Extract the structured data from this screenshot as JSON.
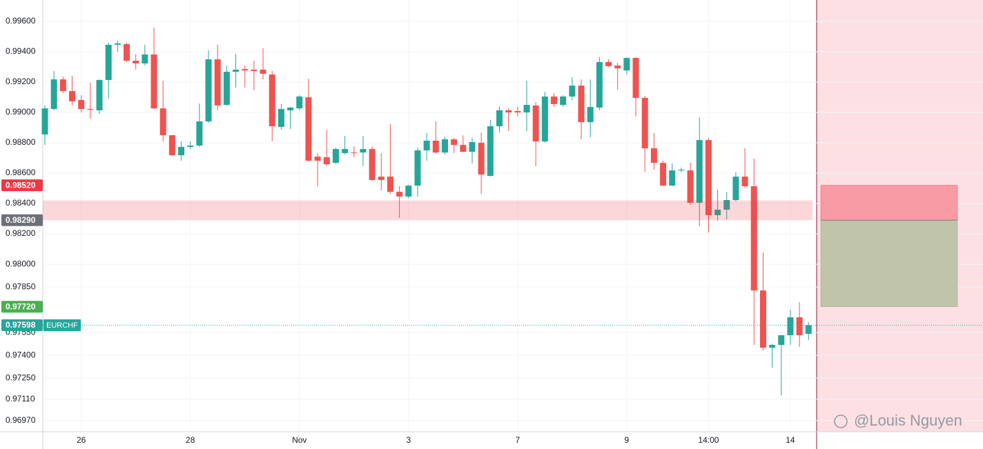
{
  "chart_data": {
    "type": "candlestick",
    "symbol": "EURCHF",
    "watermark": "@Louis Nguyen",
    "up_color": "#26a69a",
    "down_color": "#ef5350",
    "grid": true,
    "ylim": [
      0.96896,
      0.99741
    ],
    "yticks": [
      {
        "value": 0.996,
        "label": "0.99600"
      },
      {
        "value": 0.994,
        "label": "0.99400"
      },
      {
        "value": 0.992,
        "label": "0.99200"
      },
      {
        "value": 0.99,
        "label": "0.99000"
      },
      {
        "value": 0.988,
        "label": "0.98800"
      },
      {
        "value": 0.986,
        "label": "0.98600"
      },
      {
        "value": 0.984,
        "label": "0.98400"
      },
      {
        "value": 0.982,
        "label": "0.98200"
      },
      {
        "value": 0.98,
        "label": "0.98000"
      },
      {
        "value": 0.9785,
        "label": "0.97850"
      },
      {
        "value": 0.9755,
        "label": "0.97550"
      },
      {
        "value": 0.974,
        "label": "0.97400"
      },
      {
        "value": 0.9725,
        "label": "0.97250"
      },
      {
        "value": 0.9711,
        "label": "0.97110"
      },
      {
        "value": 0.9697,
        "label": "0.96970"
      }
    ],
    "categories": [
      null,
      null,
      null,
      null,
      "26",
      null,
      null,
      null,
      null,
      null,
      null,
      null,
      null,
      null,
      null,
      null,
      "28",
      null,
      null,
      null,
      null,
      null,
      null,
      null,
      null,
      null,
      null,
      null,
      "Nov",
      null,
      null,
      null,
      null,
      null,
      null,
      null,
      null,
      null,
      null,
      null,
      "3",
      null,
      null,
      null,
      null,
      null,
      null,
      null,
      null,
      null,
      null,
      null,
      "7",
      null,
      null,
      null,
      null,
      null,
      null,
      null,
      null,
      null,
      null,
      null,
      "9",
      null,
      null,
      null,
      null,
      null,
      null,
      null,
      null,
      "14:00",
      null,
      null,
      null,
      null,
      null,
      null,
      null,
      null,
      "14",
      null,
      null
    ],
    "ohlc": [
      [
        0.98855,
        0.99046,
        0.98786,
        0.99027
      ],
      [
        0.99023,
        0.99273,
        0.99014,
        0.99218
      ],
      [
        0.99218,
        0.99236,
        0.99127,
        0.99141
      ],
      [
        0.99141,
        0.99241,
        0.99046,
        0.99073
      ],
      [
        0.99082,
        0.99114,
        0.99,
        0.99023
      ],
      [
        0.99023,
        0.99196,
        0.98959,
        0.99018
      ],
      [
        0.99014,
        0.99218,
        0.98991,
        0.99214
      ],
      [
        0.99214,
        0.99459,
        0.99091,
        0.99446
      ],
      [
        0.99446,
        0.99473,
        0.994,
        0.99455
      ],
      [
        0.9945,
        0.99459,
        0.99332,
        0.99341
      ],
      [
        0.99341,
        0.99386,
        0.99282,
        0.99323
      ],
      [
        0.99323,
        0.99446,
        0.99309,
        0.99382
      ],
      [
        0.99382,
        0.99559,
        0.99023,
        0.99027
      ],
      [
        0.99027,
        0.99209,
        0.98809,
        0.9885
      ],
      [
        0.9885,
        0.9885,
        0.98714,
        0.98718
      ],
      [
        0.98718,
        0.98809,
        0.98682,
        0.98773
      ],
      [
        0.98773,
        0.98809,
        0.98759,
        0.98782
      ],
      [
        0.98782,
        0.99059,
        0.98773,
        0.98941
      ],
      [
        0.98941,
        0.99409,
        0.98932,
        0.9935
      ],
      [
        0.9935,
        0.99446,
        0.99014,
        0.99046
      ],
      [
        0.9905,
        0.99309,
        0.99046,
        0.99268
      ],
      [
        0.99268,
        0.99386,
        0.99164,
        0.99282
      ],
      [
        0.99286,
        0.99309,
        0.99164,
        0.99277
      ],
      [
        0.99282,
        0.99341,
        0.99146,
        0.99273
      ],
      [
        0.99282,
        0.99423,
        0.99218,
        0.99255
      ],
      [
        0.9925,
        0.99273,
        0.98809,
        0.98909
      ],
      [
        0.98905,
        0.99055,
        0.98886,
        0.99023
      ],
      [
        0.99014,
        0.99036,
        0.98891,
        0.99032
      ],
      [
        0.99027,
        0.99114,
        0.99014,
        0.99105
      ],
      [
        0.991,
        0.99223,
        0.98677,
        0.98682
      ],
      [
        0.98709,
        0.98732,
        0.98514,
        0.98682
      ],
      [
        0.98705,
        0.98886,
        0.9865,
        0.98659
      ],
      [
        0.98668,
        0.98768,
        0.98659,
        0.98759
      ],
      [
        0.98732,
        0.98846,
        0.98723,
        0.98759
      ],
      [
        0.98736,
        0.98777,
        0.98705,
        0.98732
      ],
      [
        0.98736,
        0.98846,
        0.98646,
        0.98759
      ],
      [
        0.98759,
        0.98777,
        0.9855,
        0.98555
      ],
      [
        0.98577,
        0.98732,
        0.98486,
        0.98555
      ],
      [
        0.98577,
        0.98923,
        0.98464,
        0.98477
      ],
      [
        0.98477,
        0.98514,
        0.98305,
        0.98446
      ],
      [
        0.98446,
        0.98523,
        0.98436,
        0.98518
      ],
      [
        0.98518,
        0.98768,
        0.98446,
        0.9875
      ],
      [
        0.9875,
        0.98864,
        0.98682,
        0.98814
      ],
      [
        0.98814,
        0.98941,
        0.98727,
        0.98736
      ],
      [
        0.98736,
        0.98841,
        0.98723,
        0.98823
      ],
      [
        0.98823,
        0.98832,
        0.98732,
        0.98786
      ],
      [
        0.98786,
        0.9885,
        0.98736,
        0.98741
      ],
      [
        0.98741,
        0.98832,
        0.98664,
        0.98805
      ],
      [
        0.988,
        0.98868,
        0.98464,
        0.98591
      ],
      [
        0.98582,
        0.9895,
        0.98577,
        0.98909
      ],
      [
        0.98909,
        0.99041,
        0.98868,
        0.99014
      ],
      [
        0.99014,
        0.99027,
        0.98877,
        0.99
      ],
      [
        0.99009,
        0.99036,
        0.98973,
        0.99
      ],
      [
        0.99,
        0.99209,
        0.98877,
        0.9905
      ],
      [
        0.99046,
        0.99068,
        0.98646,
        0.98809
      ],
      [
        0.98809,
        0.99136,
        0.988,
        0.99105
      ],
      [
        0.99105,
        0.99127,
        0.99036,
        0.99055
      ],
      [
        0.9905,
        0.99114,
        0.99036,
        0.99105
      ],
      [
        0.99105,
        0.99232,
        0.99082,
        0.99177
      ],
      [
        0.99177,
        0.99218,
        0.98823,
        0.98936
      ],
      [
        0.98936,
        0.99218,
        0.98836,
        0.99036
      ],
      [
        0.99032,
        0.99364,
        0.99014,
        0.99332
      ],
      [
        0.99332,
        0.9935,
        0.993,
        0.99305
      ],
      [
        0.99309,
        0.99327,
        0.9915,
        0.99291
      ],
      [
        0.99277,
        0.99364,
        0.9925,
        0.99359
      ],
      [
        0.99359,
        0.99364,
        0.98973,
        0.99096
      ],
      [
        0.99096,
        0.99109,
        0.98609,
        0.98764
      ],
      [
        0.98764,
        0.98864,
        0.98623,
        0.98668
      ],
      [
        0.98668,
        0.98682,
        0.98514,
        0.98518
      ],
      [
        0.98518,
        0.98664,
        0.98514,
        0.98618
      ],
      [
        0.98618,
        0.98636,
        0.98605,
        0.98623
      ],
      [
        0.98618,
        0.98668,
        0.98391,
        0.98405
      ],
      [
        0.98405,
        0.98968,
        0.9825,
        0.98818
      ],
      [
        0.98818,
        0.98832,
        0.98209,
        0.98323
      ],
      [
        0.98323,
        0.98491,
        0.98286,
        0.98359
      ],
      [
        0.98359,
        0.98477,
        0.98295,
        0.98423
      ],
      [
        0.98423,
        0.98605,
        0.98414,
        0.98577
      ],
      [
        0.98577,
        0.98764,
        0.98505,
        0.98514
      ],
      [
        0.98514,
        0.98696,
        0.97468,
        0.97827
      ],
      [
        0.97827,
        0.98077,
        0.97432,
        0.9745
      ],
      [
        0.9745,
        0.97477,
        0.97318,
        0.97468
      ],
      [
        0.97468,
        0.97532,
        0.97136,
        0.97532
      ],
      [
        0.97532,
        0.977,
        0.97468,
        0.9765
      ],
      [
        0.9765,
        0.9775,
        0.97455,
        0.97532
      ],
      [
        0.97541,
        0.97618,
        0.975,
        0.97598
      ]
    ],
    "zone": [
      0.9829,
      0.9842
    ],
    "position": {
      "stop": {
        "value": 0.9852,
        "label": "0.98520"
      },
      "entry": {
        "value": 0.9829,
        "label": "0.98290"
      },
      "target": {
        "value": 0.9772,
        "label": "0.97720"
      }
    },
    "last_price": {
      "value": 0.97598,
      "label": "0.97598"
    }
  }
}
